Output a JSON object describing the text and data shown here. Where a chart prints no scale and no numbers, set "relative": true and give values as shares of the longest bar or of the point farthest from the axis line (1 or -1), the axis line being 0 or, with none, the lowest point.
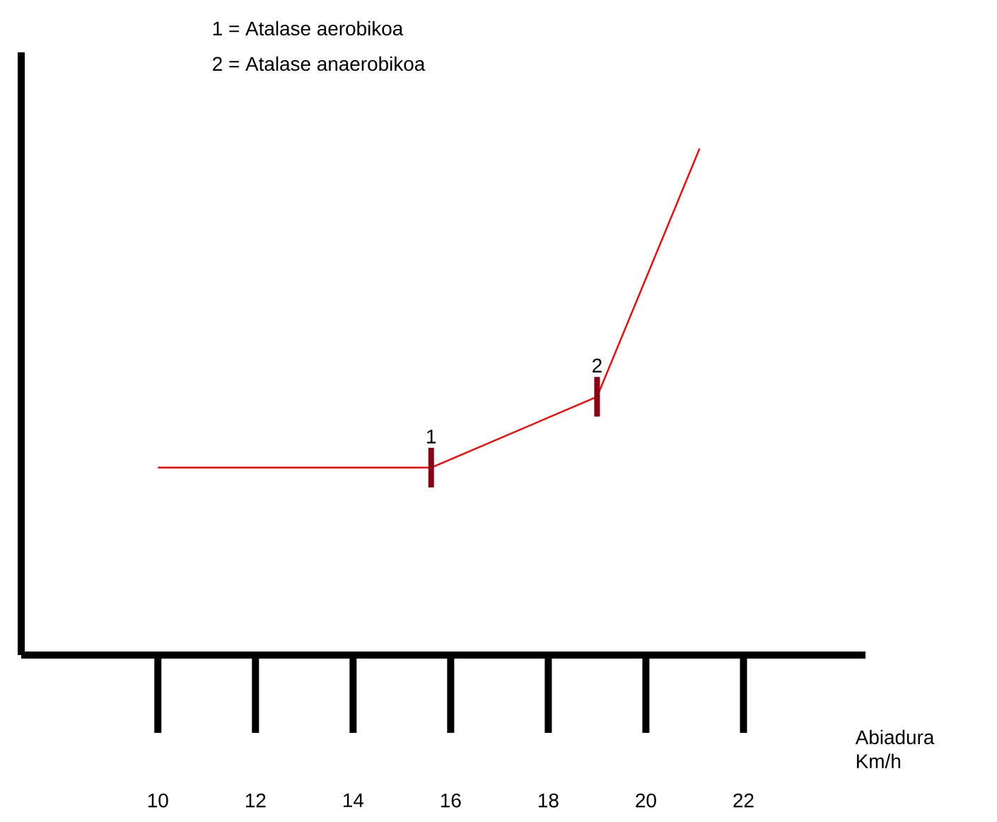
{
  "chart_data": {
    "type": "line",
    "relative": true,
    "x": [
      10,
      15.6,
      19.0,
      21.1
    ],
    "series": [
      {
        "color": "#ff0000",
        "values": [
          0.37,
          0.37,
          0.51,
          1
        ]
      }
    ],
    "xlim": [
      7.2,
      24.5
    ],
    "xticks": [
      10,
      12,
      14,
      16,
      18,
      20,
      22
    ],
    "xlabel": "Abiadura Km/h",
    "grid": false,
    "marker": "none",
    "line_style": "solid",
    "annotations": [
      {
        "text": "1",
        "x": 15.6,
        "y": 0.37
      },
      {
        "text": "2",
        "x": 19.0,
        "y": 0.51
      },
      "1 = Atalase aerobikoa",
      "2 = Atalase anaerobikoa"
    ]
  }
}
